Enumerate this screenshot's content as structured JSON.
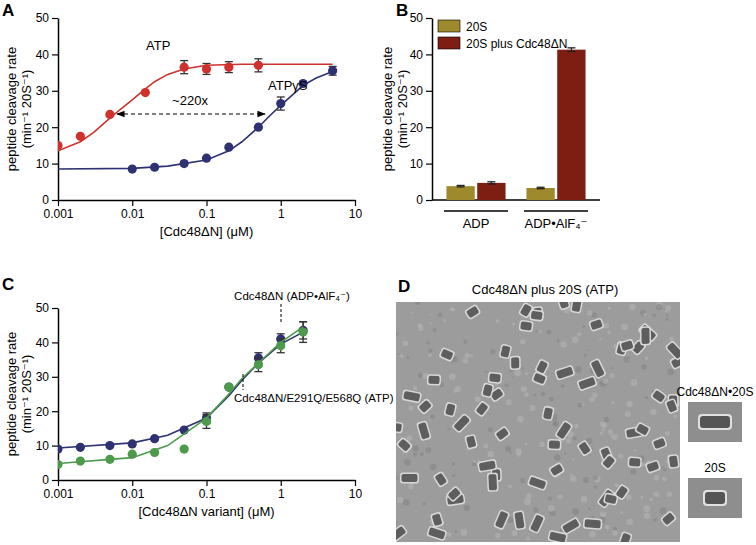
{
  "chart_data": [
    {
      "panel": "A",
      "type": "scatter",
      "log": "x",
      "xlim": [
        0.001,
        10
      ],
      "xticks": [
        0.001,
        0.01,
        0.1,
        1,
        10
      ],
      "ylim": [
        0,
        50
      ],
      "yticks": [
        0,
        10,
        20,
        30,
        40,
        50
      ],
      "xlabel": "[Cdc48ΔN] (μM)",
      "ylabel": [
        "peptide cleavage rate",
        "(min⁻¹ 20S⁻¹)"
      ],
      "annotations": [
        "~220x"
      ],
      "series": [
        {
          "name": "ATP",
          "color": "#d0312d",
          "type": "scatter",
          "marker": "circle",
          "x": [
            0.001,
            0.002,
            0.005,
            0.015,
            0.05,
            0.1,
            0.2,
            0.5
          ],
          "values": [
            15,
            17.5,
            23.5,
            29.5,
            36.5,
            36,
            36.5,
            37
          ],
          "errors": [
            null,
            null,
            null,
            null,
            1.8,
            1.5,
            1.5,
            1.8
          ]
        },
        {
          "color": "#d0312d",
          "type": "line",
          "x": [
            0.001,
            0.002,
            0.003,
            0.005,
            0.007,
            0.01,
            0.015,
            0.02,
            0.03,
            0.05,
            0.1,
            0.3,
            1,
            5
          ],
          "values": [
            13.5,
            16,
            18.5,
            22.5,
            25,
            27.5,
            30.5,
            32.5,
            34.5,
            36,
            37,
            37.3,
            37.3,
            37.3
          ]
        },
        {
          "name": "ATPγS",
          "color": "#2e3172",
          "type": "scatter",
          "marker": "circle",
          "x": [
            0.01,
            0.02,
            0.05,
            0.1,
            0.2,
            0.5,
            1,
            2,
            5
          ],
          "values": [
            8.5,
            9,
            10,
            11.5,
            14.5,
            20,
            26.5,
            32,
            35.5
          ],
          "errors": [
            null,
            null,
            null,
            null,
            null,
            null,
            1.8,
            null,
            1.2
          ]
        },
        {
          "color": "#2e3172",
          "type": "line",
          "x": [
            0.001,
            0.01,
            0.03,
            0.1,
            0.2,
            0.3,
            0.5,
            0.7,
            1,
            2,
            3,
            5
          ],
          "values": [
            8.5,
            8.7,
            9.3,
            11,
            13.5,
            16,
            20,
            23,
            26,
            31.5,
            33.5,
            35.3
          ]
        }
      ]
    },
    {
      "panel": "B",
      "type": "bar",
      "legend": "top-left",
      "categories": [
        "ADP",
        "ADP•AlF₄⁻"
      ],
      "ylim": [
        0,
        50
      ],
      "yticks": [
        0,
        10,
        20,
        30,
        40,
        50
      ],
      "ylabel": [
        "peptide cleavage rate",
        "(min⁻¹ 20S⁻¹)"
      ],
      "series": [
        {
          "name": "20S",
          "color": "#9e8a2c",
          "values": [
            3.8,
            3.3
          ],
          "errors": [
            0.2,
            0.2
          ]
        },
        {
          "name": "20S plus Cdc48ΔN",
          "color": "#7e1d12",
          "values": [
            4.7,
            41.3
          ],
          "errors": [
            0.3,
            0.5
          ]
        }
      ]
    },
    {
      "panel": "C",
      "type": "scatter",
      "log": "x",
      "xlim": [
        0.001,
        10
      ],
      "xticks": [
        0.001,
        0.01,
        0.1,
        1,
        10
      ],
      "ylim": [
        0,
        50
      ],
      "yticks": [
        0,
        10,
        20,
        30,
        40,
        50
      ],
      "xlabel": "[Cdc48ΔN variant] (μM)",
      "ylabel": [
        "peptide cleavage rate",
        "(min⁻¹ 20S⁻¹)"
      ],
      "series": [
        {
          "name": "Cdc48ΔN (ADP•AlF₄⁻)",
          "color": "#2e3172",
          "type": "scatter",
          "marker": "circle",
          "x": [
            0.001,
            0.002,
            0.005,
            0.01,
            0.02,
            0.05,
            0.1,
            0.2,
            0.5,
            1,
            2
          ],
          "values": [
            9,
            9.5,
            10,
            10.5,
            12,
            14.5,
            18,
            27,
            35.5,
            41,
            43.5
          ],
          "errors": [
            null,
            null,
            null,
            null,
            null,
            null,
            1.5,
            null,
            1.5,
            1.5,
            2.5
          ]
        },
        {
          "color": "#2e3172",
          "type": "line",
          "x": [
            0.001,
            0.01,
            0.03,
            0.1,
            0.2,
            0.3,
            0.5,
            1,
            2
          ],
          "values": [
            9.3,
            10.8,
            13,
            18,
            24.5,
            29,
            34,
            39.5,
            43
          ]
        },
        {
          "name": "Cdc48ΔN/E291Q/E568Q (ATP)",
          "color": "#4c9a4a",
          "type": "scatter",
          "marker": "circle",
          "x": [
            0.001,
            0.002,
            0.005,
            0.01,
            0.02,
            0.05,
            0.1,
            0.2,
            0.5,
            1,
            2
          ],
          "values": [
            4.5,
            5.5,
            6,
            7.5,
            8,
            9,
            17,
            27,
            33.5,
            39,
            43
          ],
          "errors": [
            null,
            null,
            null,
            null,
            null,
            null,
            2,
            null,
            2,
            2,
            3
          ]
        },
        {
          "color": "#4c9a4a",
          "type": "line",
          "x": [
            0.001,
            0.01,
            0.03,
            0.1,
            0.2,
            0.3,
            0.5,
            1,
            2
          ],
          "values": [
            4.8,
            6.5,
            10,
            18,
            25,
            29.5,
            34,
            40,
            44.5
          ]
        }
      ]
    }
  ],
  "image_panel": {
    "panel": "D",
    "title": "Cdc48ΔN plus 20S (ATP)",
    "insets": [
      "Cdc48ΔN•20S",
      "20S"
    ]
  }
}
